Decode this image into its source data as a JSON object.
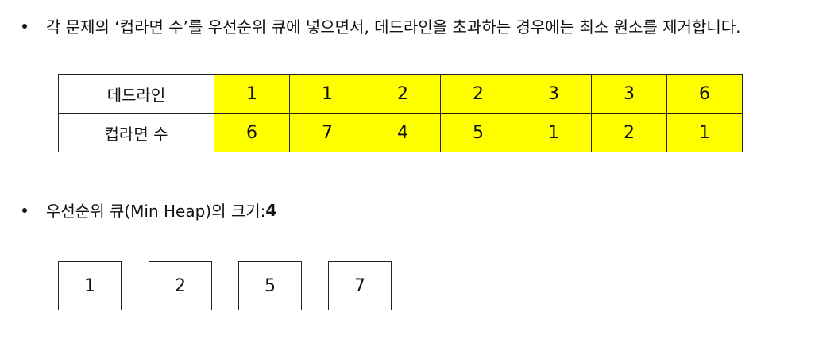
{
  "bullet1": {
    "text": "각 문제의 ‘컵라면 수’를 우선순위 큐에 넣으면서, 데드라인을 초과하는 경우에는 최소 원소를 제거합니다."
  },
  "table": {
    "rows": [
      {
        "label": "데드라인",
        "values": [
          "1",
          "1",
          "2",
          "2",
          "3",
          "3",
          "6"
        ]
      },
      {
        "label": "컵라면 수",
        "values": [
          "6",
          "7",
          "4",
          "5",
          "1",
          "2",
          "1"
        ]
      }
    ],
    "highlight_color": "#ffff00"
  },
  "bullet2": {
    "text": "우선순위 큐(Min Heap)의 크기: ",
    "size": "4"
  },
  "heap": {
    "items": [
      "1",
      "2",
      "5",
      "7"
    ]
  }
}
